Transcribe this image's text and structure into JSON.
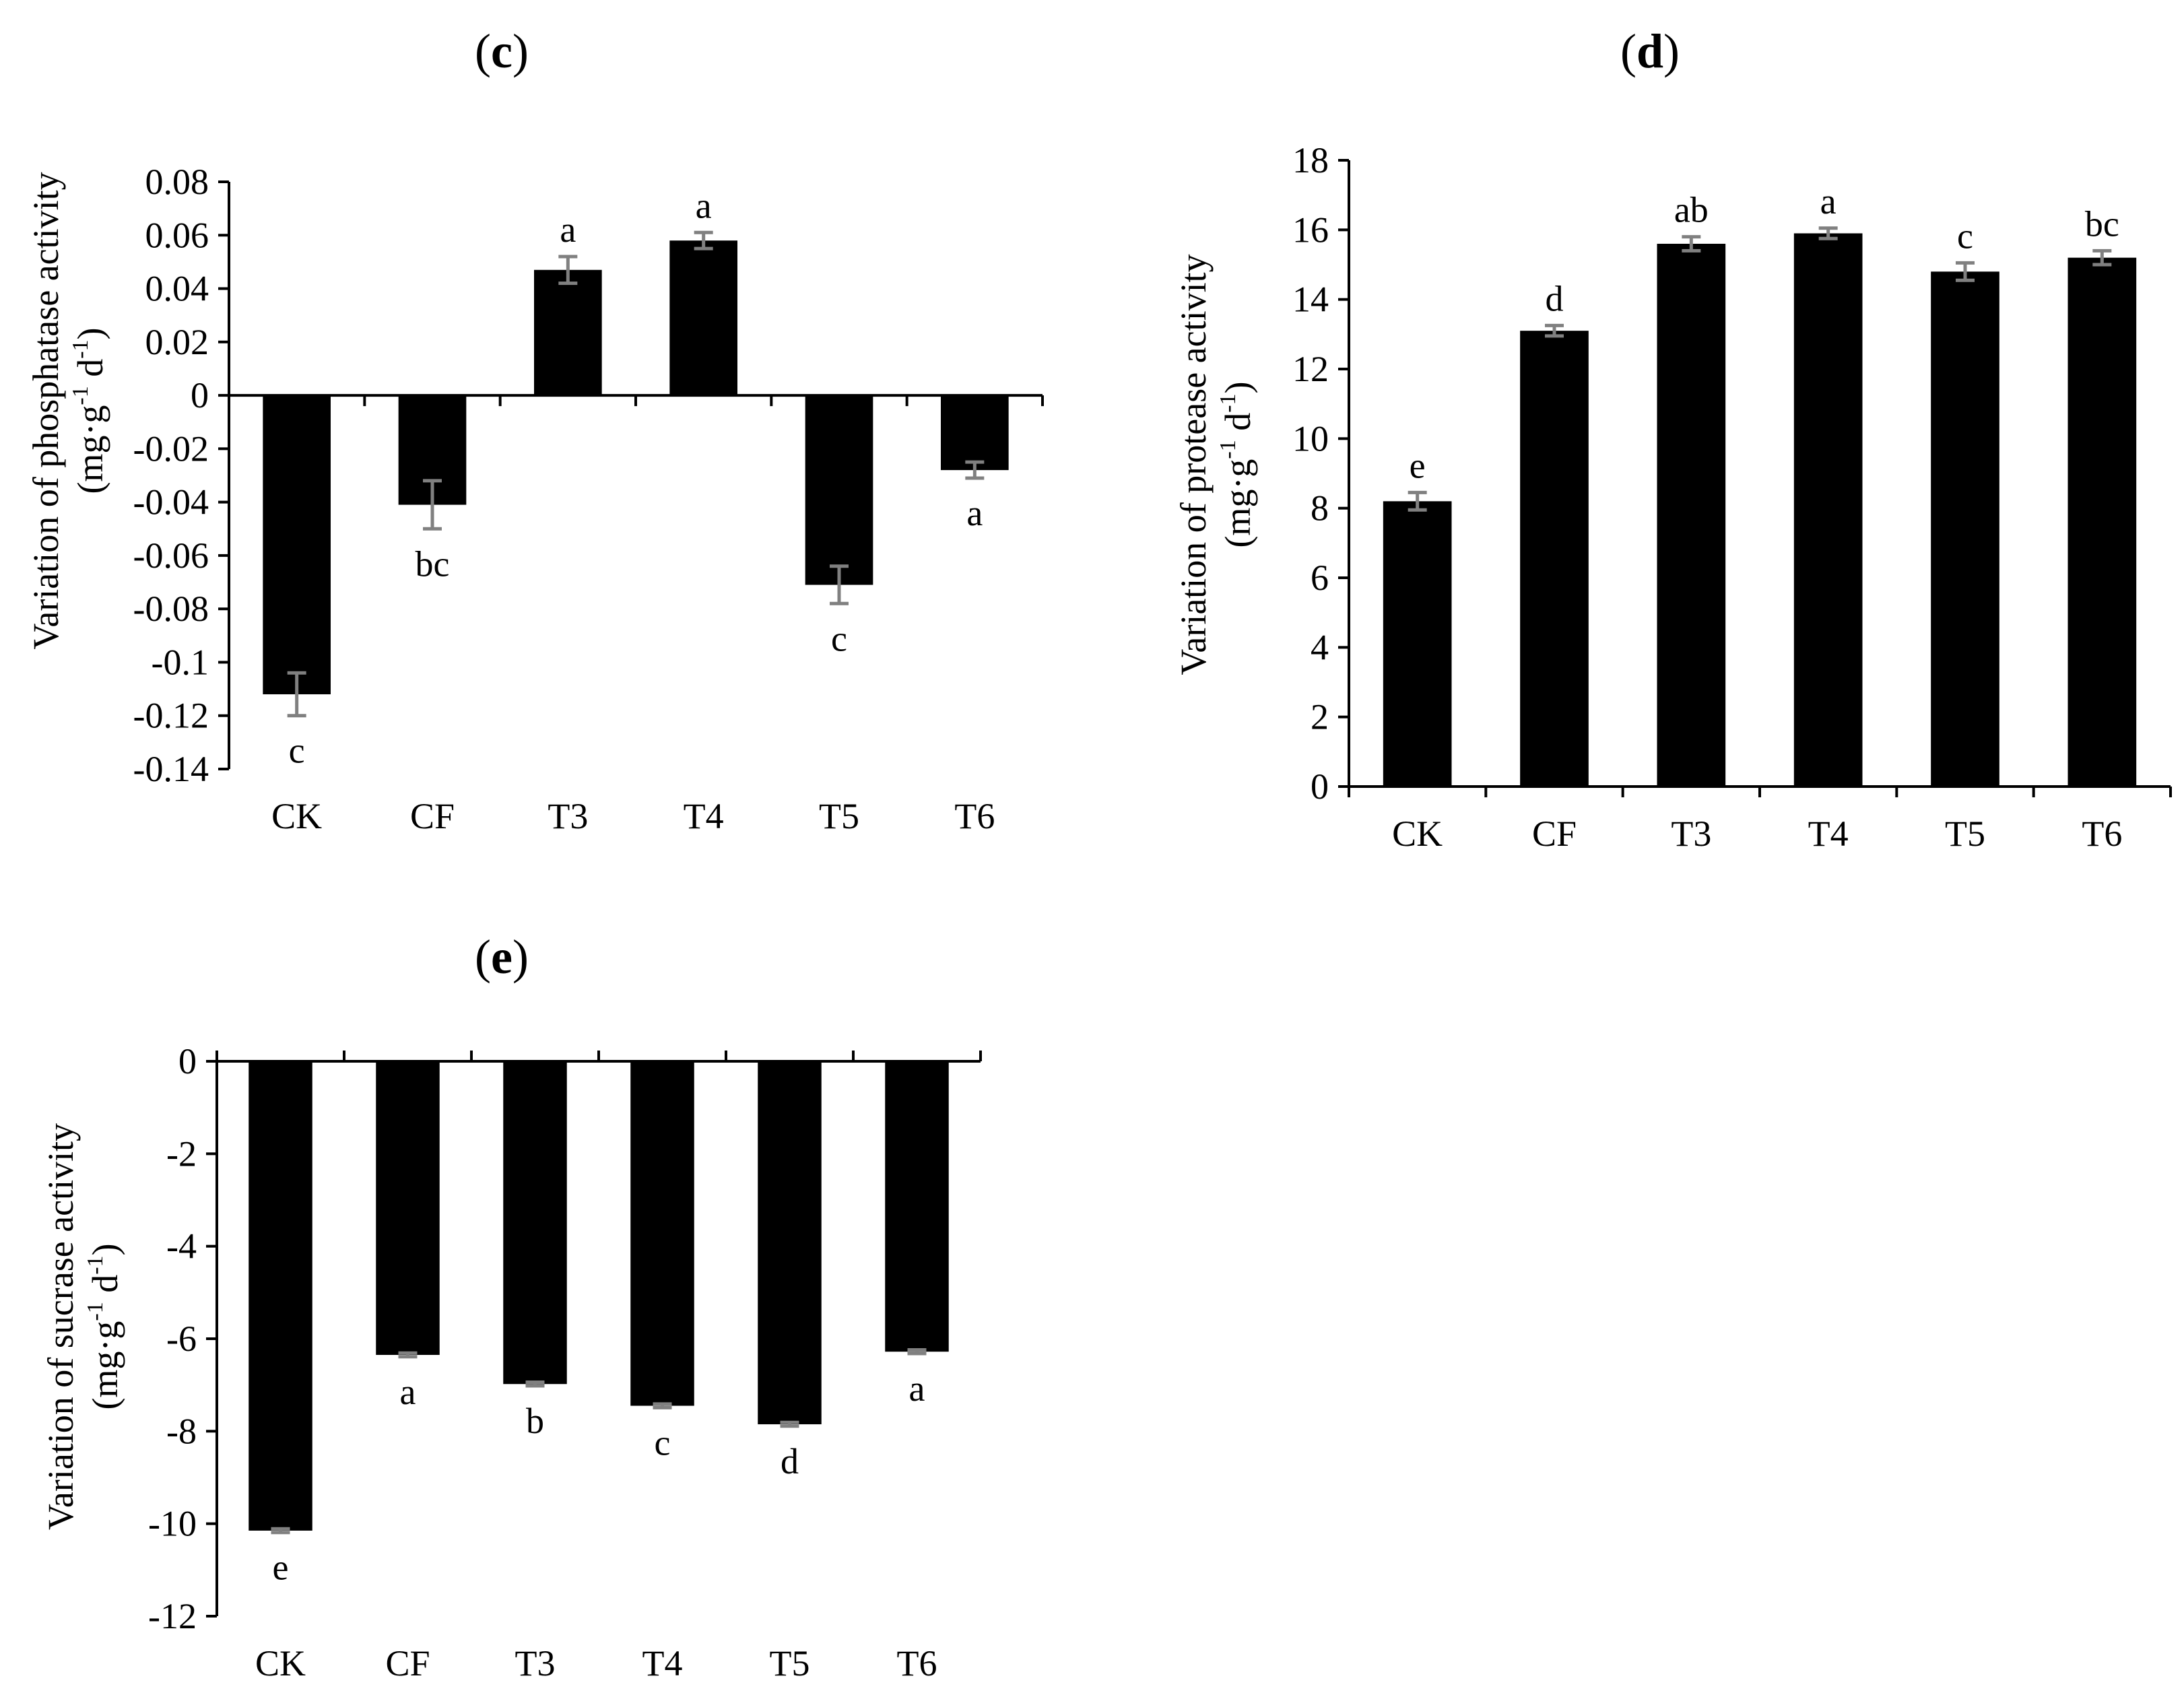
{
  "chart_data": [
    {
      "type": "bar",
      "panel": "c",
      "categories": [
        "CK",
        "CF",
        "T3",
        "T4",
        "T5",
        "T6"
      ],
      "values": [
        -0.112,
        -0.041,
        0.047,
        0.058,
        -0.071,
        -0.028
      ],
      "errors": [
        0.008,
        0.009,
        0.005,
        0.003,
        0.007,
        0.003
      ],
      "significance": [
        "c",
        "bc",
        "a",
        "a",
        "c",
        "a"
      ],
      "ylabel_line1": "Variation of phosphatase  activity",
      "ylabel_line2_prefix": "(mg·g",
      "ylabel_line2_sup1": "-1",
      "ylabel_line2_mid": "  d",
      "ylabel_line2_sup2": "-1",
      "ylabel_line2_suffix": ")",
      "ylim": [
        -0.14,
        0.08
      ],
      "yticks": [
        0.08,
        0.06,
        0.04,
        0.02,
        0,
        -0.02,
        -0.04,
        -0.06,
        -0.08,
        -0.1,
        -0.12,
        -0.14
      ],
      "ytick_labels": [
        "0.08",
        "0.06",
        "0.04",
        "0.02",
        "0",
        "-0.02",
        "-0.04",
        "-0.06",
        "-0.08",
        "-0.1",
        "-0.12",
        "-0.14"
      ],
      "bar_color": "#000000",
      "error_color": "#808080"
    },
    {
      "type": "bar",
      "panel": "d",
      "categories": [
        "CK",
        "CF",
        "T3",
        "T4",
        "T5",
        "T6"
      ],
      "values": [
        8.2,
        13.1,
        15.6,
        15.9,
        14.8,
        15.2
      ],
      "errors": [
        0.25,
        0.15,
        0.2,
        0.15,
        0.25,
        0.2
      ],
      "significance": [
        "e",
        "d",
        "ab",
        "a",
        "c",
        "bc"
      ],
      "ylabel_line1": "Variation of protease  activity",
      "ylabel_line2_prefix": "(mg·g",
      "ylabel_line2_sup1": "-1",
      "ylabel_line2_mid": "  d",
      "ylabel_line2_sup2": "-1",
      "ylabel_line2_suffix": ")",
      "ylim": [
        0,
        18
      ],
      "yticks": [
        18,
        16,
        14,
        12,
        10,
        8,
        6,
        4,
        2,
        0
      ],
      "ytick_labels": [
        "18",
        "16",
        "14",
        "12",
        "10",
        "8",
        "6",
        "4",
        "2",
        "0"
      ],
      "bar_color": "#000000",
      "error_color": "#808080"
    },
    {
      "type": "bar",
      "panel": "e",
      "categories": [
        "CK",
        "CF",
        "T3",
        "T4",
        "T5",
        "T6"
      ],
      "values": [
        -10.15,
        -6.35,
        -6.98,
        -7.45,
        -7.85,
        -6.28
      ],
      "errors": [
        0.04,
        0.04,
        0.04,
        0.04,
        0.04,
        0.04
      ],
      "significance": [
        "e",
        "a",
        "b",
        "c",
        "d",
        "a"
      ],
      "ylabel_line1": "Variation of sucrase activity",
      "ylabel_line2_prefix": "(mg·g",
      "ylabel_line2_sup1": "-1",
      "ylabel_line2_mid": "  d",
      "ylabel_line2_sup2": "-1",
      "ylabel_line2_suffix": ")",
      "ylim": [
        -12,
        0
      ],
      "yticks": [
        0,
        -2,
        -4,
        -6,
        -8,
        -10,
        -12
      ],
      "ytick_labels": [
        "0",
        "-2",
        "-4",
        "-6",
        "-8",
        "-10",
        "-12"
      ],
      "bar_color": "#000000",
      "error_color": "#808080"
    }
  ],
  "panel_titles": {
    "c": {
      "open": "(",
      "letter": "c",
      "close": ")"
    },
    "d": {
      "open": "(",
      "letter": "d",
      "close": ")"
    },
    "e": {
      "open": "(",
      "letter": "e",
      "close": ")"
    }
  }
}
